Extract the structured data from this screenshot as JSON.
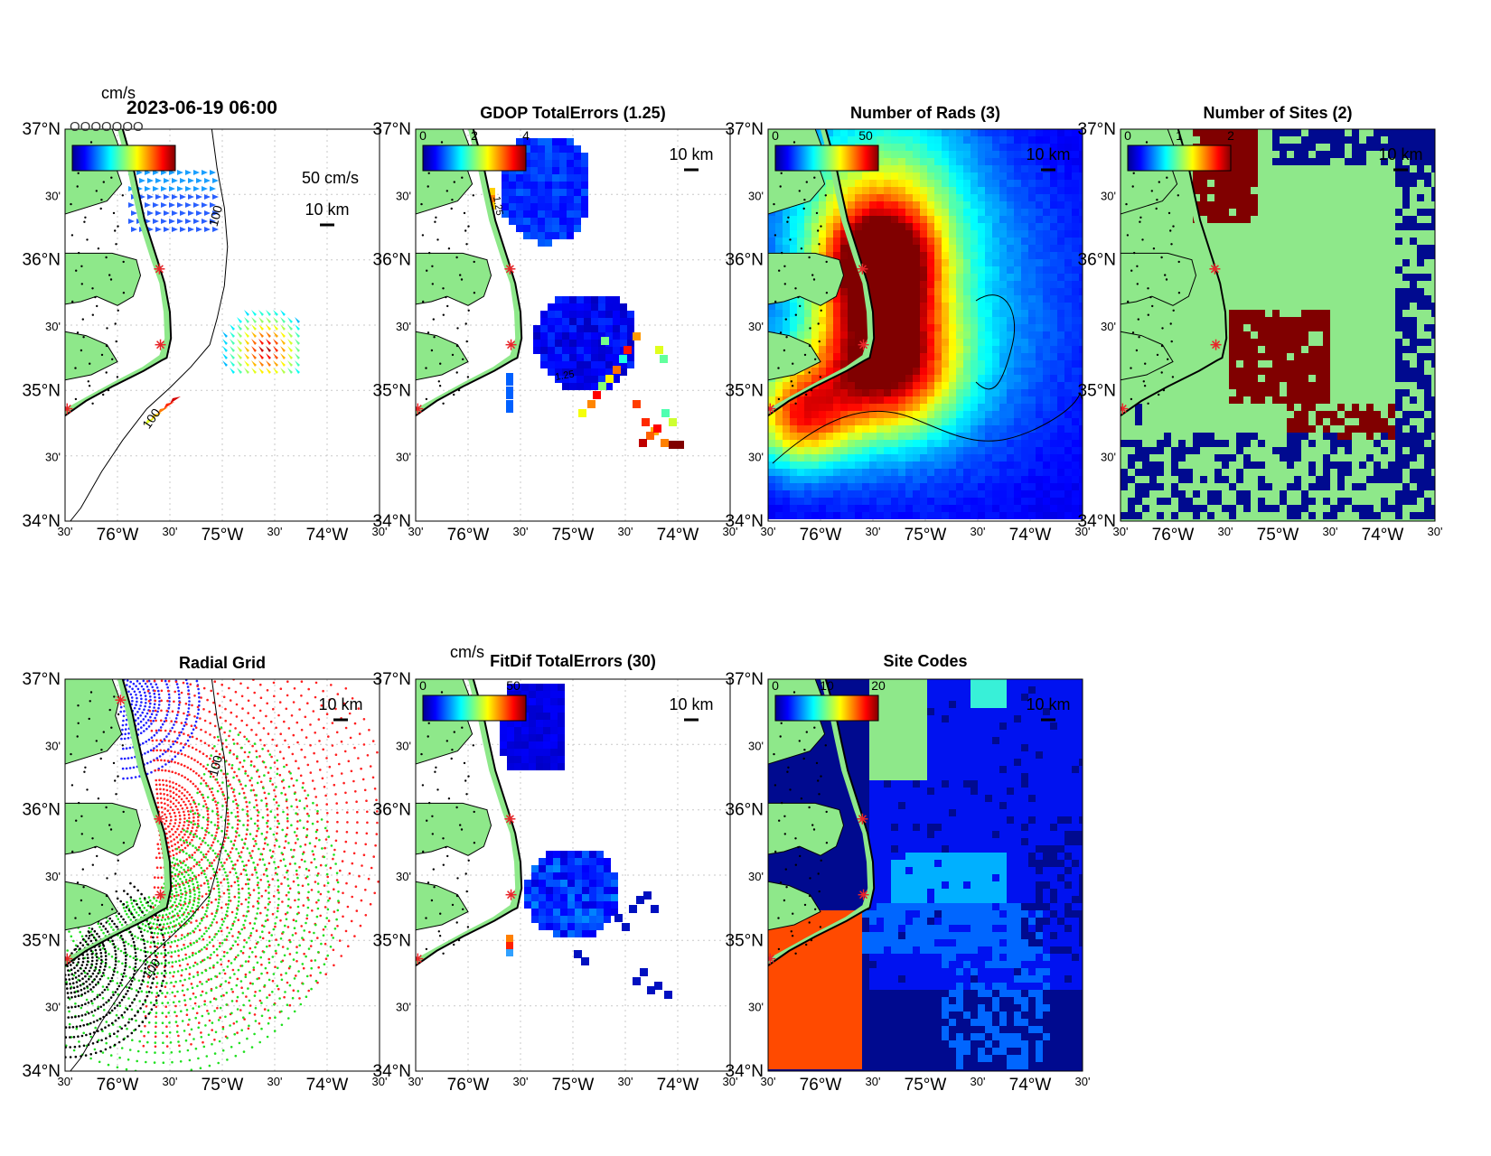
{
  "figure": {
    "timestamp": "2023-06-19 06:00",
    "speed_unit": "cm/s",
    "overlap_text": "OOOOOOO",
    "colors": {
      "land": "#8ee88a",
      "coast": "#000000",
      "site_marker": "#e8262a",
      "grid_line": "#c8c8c8",
      "sea_deep": "#000a8f",
      "sea_blue": "#0012f0",
      "mid_blue": "#0066ff",
      "light_blue": "#00b0ff",
      "dark_red": "#800000",
      "orange_red": "#ff4a00",
      "cyan": "#38f0d8"
    },
    "axes": {
      "lat_labels": [
        "37°N",
        "30'",
        "36°N",
        "30'",
        "35°N",
        "30'",
        "34°N"
      ],
      "lon_labels": [
        "30'",
        "76°W",
        "30'",
        "75°W",
        "30'",
        "74°W",
        "30'"
      ]
    },
    "isobath_label": "100",
    "scale_bar_label": "10 km",
    "vector_scale_label": "50 cm/s",
    "sites": [
      "north",
      "hatteras_north",
      "hatteras_south",
      "southwest"
    ]
  },
  "panels": [
    {
      "id": "totals",
      "title": "",
      "colorbar_unit": "cm/s",
      "colorbar_ticks": [],
      "show_vector_scale": true
    },
    {
      "id": "gdop",
      "title": "GDOP TotalErrors (1.25)",
      "colorbar_unit": "",
      "colorbar_ticks": [
        "0",
        "2",
        "4"
      ],
      "contour_label": "1.25"
    },
    {
      "id": "nrads",
      "title": "Number of Rads (3)",
      "colorbar_unit": "",
      "colorbar_ticks": [
        "0",
        "50"
      ]
    },
    {
      "id": "nsites",
      "title": "Number of Sites (2)",
      "colorbar_unit": "",
      "colorbar_ticks": [
        "0",
        "1",
        "2"
      ]
    },
    {
      "id": "radgrid",
      "title": "Radial Grid",
      "colorbar_unit": "",
      "colorbar_ticks": []
    },
    {
      "id": "fitdif",
      "title": "FitDif TotalErrors (30)",
      "colorbar_unit": "cm/s",
      "colorbar_ticks": [
        "0",
        "50"
      ]
    },
    {
      "id": "sitecodes",
      "title": "Site Codes",
      "colorbar_unit": "",
      "colorbar_ticks": [
        "0",
        "10",
        "20"
      ]
    }
  ]
}
